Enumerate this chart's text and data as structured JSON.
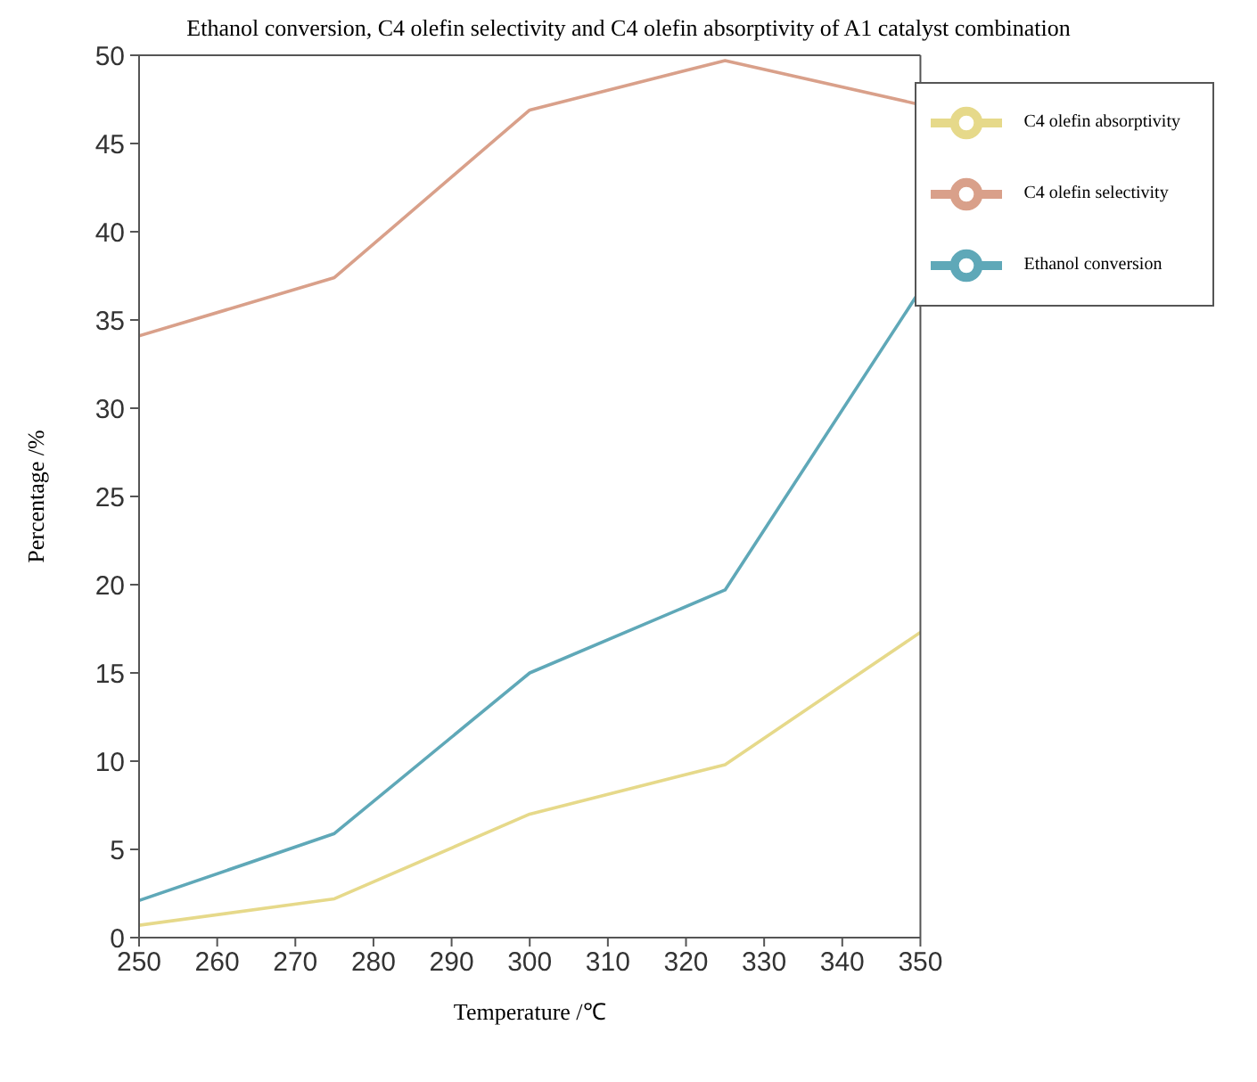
{
  "chart_data": {
    "type": "line",
    "title": "Ethanol conversion, C4 olefin selectivity and C4 olefin absorptivity of A1 catalyst combination",
    "xlabel": "Temperature /℃",
    "ylabel": "Percentage /%",
    "x": [
      250,
      275,
      300,
      325,
      350
    ],
    "series": [
      {
        "name": "Ethanol conversion",
        "color": "#5fa8b8",
        "values": [
          2.1,
          5.9,
          15.0,
          19.7,
          36.7
        ]
      },
      {
        "name": "C4 olefin selectivity",
        "color": "#d9a08a",
        "values": [
          34.1,
          37.4,
          46.9,
          49.7,
          47.2
        ]
      },
      {
        "name": "C4 olefin absorptivity",
        "color": "#e6d98a",
        "values": [
          0.7,
          2.2,
          7.0,
          9.8,
          17.3
        ]
      }
    ],
    "xlim": [
      250,
      350
    ],
    "xticks": [
      250,
      260,
      270,
      280,
      290,
      300,
      310,
      320,
      330,
      340,
      350
    ],
    "ylim": [
      0,
      50
    ],
    "yticks": [
      0,
      5,
      10,
      15,
      20,
      25,
      30,
      35,
      40,
      45,
      50
    ],
    "grid": false,
    "legend": "top right",
    "marker": "none",
    "line_style": "solid"
  }
}
